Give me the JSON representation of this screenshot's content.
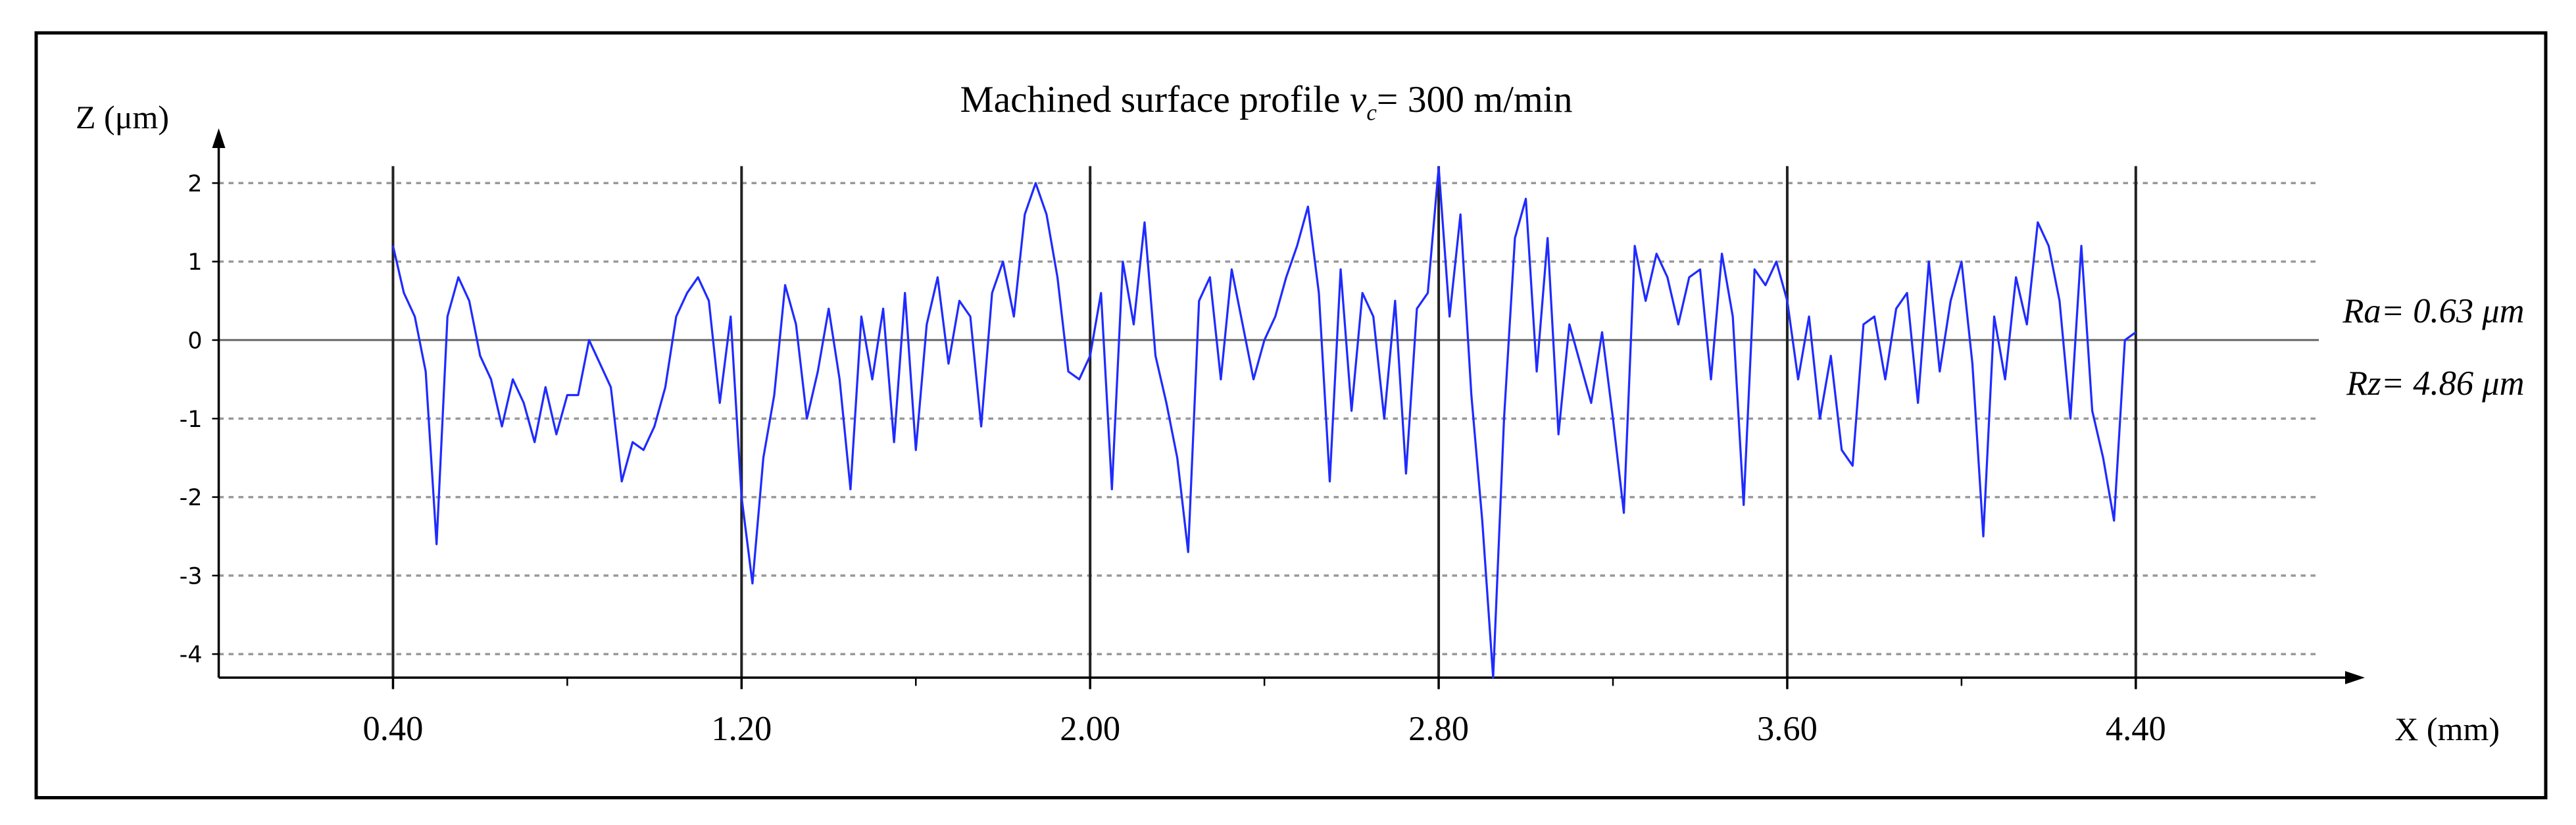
{
  "chart_data": {
    "type": "line",
    "title": {
      "text": "Machined surface profile ",
      "variable": "v",
      "subscript": "c",
      "rest": "= 300 m/min"
    },
    "x_label": "X (mm)",
    "y_label": "Z (μm)",
    "annotations": [
      "Ra= 0.63 μm",
      "Rz= 4.86 μm"
    ],
    "color": "#1f2bff",
    "xlim": [
      0,
      4.82
    ],
    "ylim": [
      -4.3,
      2.3
    ],
    "xticks": [
      {
        "value": 0.4,
        "label": "0.40"
      },
      {
        "value": 1.2,
        "label": "1.20"
      },
      {
        "value": 2.0,
        "label": "2.00"
      },
      {
        "value": 2.8,
        "label": "2.80"
      },
      {
        "value": 3.6,
        "label": "3.60"
      },
      {
        "value": 4.4,
        "label": "4.40"
      }
    ],
    "xminorticks": [
      0.8,
      1.6,
      2.4,
      3.2,
      4.0
    ],
    "yticks": [
      2,
      1,
      0,
      -1,
      -2,
      -3,
      -4
    ],
    "xgrid": true,
    "ygrid": "dashed",
    "x": [
      0.4,
      0.425,
      0.45,
      0.475,
      0.5,
      0.525,
      0.55,
      0.575,
      0.6,
      0.625,
      0.65,
      0.675,
      0.7,
      0.725,
      0.75,
      0.775,
      0.8,
      0.825,
      0.85,
      0.875,
      0.9,
      0.925,
      0.95,
      0.975,
      1.0,
      1.025,
      1.05,
      1.075,
      1.1,
      1.125,
      1.15,
      1.175,
      1.2,
      1.225,
      1.25,
      1.275,
      1.3,
      1.325,
      1.35,
      1.375,
      1.4,
      1.425,
      1.45,
      1.475,
      1.5,
      1.525,
      1.55,
      1.575,
      1.6,
      1.625,
      1.65,
      1.675,
      1.7,
      1.725,
      1.75,
      1.775,
      1.8,
      1.825,
      1.85,
      1.875,
      1.9,
      1.925,
      1.95,
      1.975,
      2.0,
      2.025,
      2.05,
      2.075,
      2.1,
      2.125,
      2.15,
      2.175,
      2.2,
      2.225,
      2.25,
      2.275,
      2.3,
      2.325,
      2.35,
      2.375,
      2.4,
      2.425,
      2.45,
      2.475,
      2.5,
      2.525,
      2.55,
      2.575,
      2.6,
      2.625,
      2.65,
      2.675,
      2.7,
      2.725,
      2.75,
      2.775,
      2.8,
      2.825,
      2.85,
      2.875,
      2.9,
      2.925,
      2.95,
      2.975,
      3.0,
      3.025,
      3.05,
      3.075,
      3.1,
      3.125,
      3.15,
      3.175,
      3.2,
      3.225,
      3.25,
      3.275,
      3.3,
      3.325,
      3.35,
      3.375,
      3.4,
      3.425,
      3.45,
      3.475,
      3.5,
      3.525,
      3.55,
      3.575,
      3.6,
      3.625,
      3.65,
      3.675,
      3.7,
      3.725,
      3.75,
      3.775,
      3.8,
      3.825,
      3.85,
      3.875,
      3.9,
      3.925,
      3.95,
      3.975,
      4.0,
      4.025,
      4.05,
      4.075,
      4.1,
      4.125,
      4.15,
      4.175,
      4.2,
      4.225,
      4.25,
      4.275,
      4.3,
      4.325,
      4.35,
      4.375,
      4.4
    ],
    "values": [
      1.2,
      0.6,
      0.3,
      -0.4,
      -2.6,
      0.3,
      0.8,
      0.5,
      -0.2,
      -0.5,
      -1.1,
      -0.5,
      -0.8,
      -1.3,
      -0.6,
      -1.2,
      -0.7,
      -0.7,
      0.0,
      -0.3,
      -0.6,
      -1.8,
      -1.3,
      -1.4,
      -1.1,
      -0.6,
      0.3,
      0.6,
      0.8,
      0.5,
      -0.8,
      0.3,
      -2.0,
      -3.1,
      -1.5,
      -0.7,
      0.7,
      0.2,
      -1.0,
      -0.4,
      0.4,
      -0.5,
      -1.9,
      0.3,
      -0.5,
      0.4,
      -1.3,
      0.6,
      -1.4,
      0.2,
      0.8,
      -0.3,
      0.5,
      0.3,
      -1.1,
      0.6,
      1.0,
      0.3,
      1.6,
      2.0,
      1.6,
      0.8,
      -0.4,
      -0.5,
      -0.2,
      0.6,
      -1.9,
      1.0,
      0.2,
      1.5,
      -0.2,
      -0.8,
      -1.5,
      -2.7,
      0.5,
      0.8,
      -0.5,
      0.9,
      0.2,
      -0.5,
      0.0,
      0.3,
      0.8,
      1.2,
      1.7,
      0.6,
      -1.8,
      0.9,
      -0.9,
      0.6,
      0.3,
      -1.0,
      0.5,
      -1.7,
      0.4,
      0.6,
      2.2,
      0.3,
      1.6,
      -0.7,
      -2.3,
      -4.3,
      -1.0,
      1.3,
      1.8,
      -0.4,
      1.3,
      -1.2,
      0.2,
      -0.3,
      -0.8,
      0.1,
      -1.0,
      -2.2,
      1.2,
      0.5,
      1.1,
      0.8,
      0.2,
      0.8,
      0.9,
      -0.5,
      1.1,
      0.3,
      -2.1,
      0.9,
      0.7,
      1.0,
      0.5,
      -0.5,
      0.3,
      -1.0,
      -0.2,
      -1.4,
      -1.6,
      0.2,
      0.3,
      -0.5,
      0.4,
      0.6,
      -0.8,
      1.0,
      -0.4,
      0.5,
      1.0,
      -0.3,
      -2.5,
      0.3,
      -0.5,
      0.8,
      0.2,
      1.5,
      1.2,
      0.5,
      -1.0,
      1.2,
      -0.9,
      -1.5,
      -2.3,
      0.0,
      0.1
    ]
  }
}
